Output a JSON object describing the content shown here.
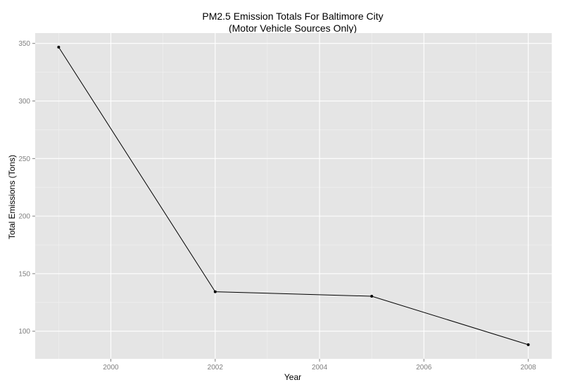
{
  "chart_data": {
    "type": "line",
    "title": "PM2.5 Emission Totals For Baltimore City",
    "subtitle": "(Motor Vehicle Sources Only)",
    "xlabel": "Year",
    "ylabel": "Total Emissions (Tons)",
    "x": [
      1999,
      2002,
      2005,
      2008
    ],
    "y": [
      346.8,
      134.3,
      130.4,
      88.3
    ],
    "xlim": [
      1998.55,
      2008.45
    ],
    "ylim": [
      76,
      359
    ],
    "xticks": [
      2000,
      2002,
      2004,
      2006,
      2008
    ],
    "yticks": [
      100,
      150,
      200,
      250,
      300,
      350
    ],
    "xtick_labels": [
      "2000",
      "2002",
      "2004",
      "2006",
      "2008"
    ],
    "ytick_labels": [
      "100",
      "150",
      "200",
      "250",
      "300",
      "350"
    ],
    "grid": true,
    "legend": "none"
  },
  "colors": {
    "panel_background": "#e5e5e5",
    "grid_major": "#ffffff",
    "grid_minor": "#f2f2f2",
    "line": "#000000",
    "point": "#000000",
    "tick_text": "#7f7f7f"
  }
}
